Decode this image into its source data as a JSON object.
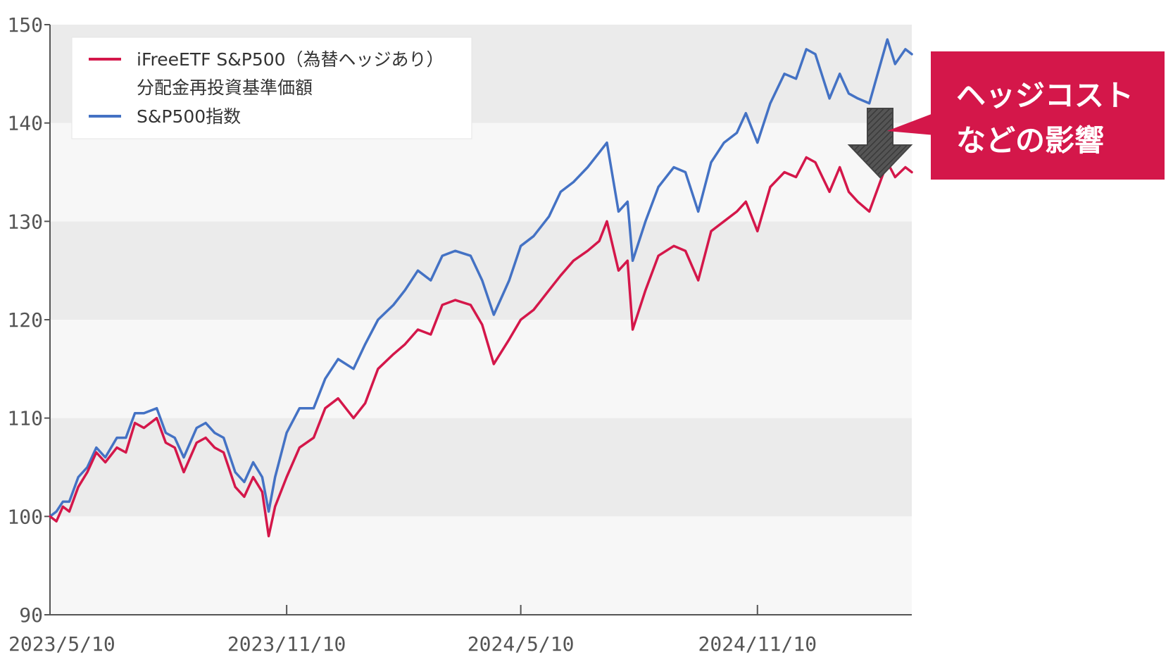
{
  "chart_data": {
    "type": "line",
    "title": "",
    "xlabel": "",
    "ylabel": "",
    "ylim": [
      90,
      150
    ],
    "yticks": [
      90,
      100,
      110,
      120,
      130,
      140,
      150
    ],
    "x_range": [
      "2023-05-10",
      "2025-03-10"
    ],
    "xticks": [
      "2023/5/10",
      "2023/11/10",
      "2024/5/10",
      "2024/11/10"
    ],
    "xtick_dates": [
      "2023-05-10",
      "2023-11-10",
      "2024-05-10",
      "2024-11-10"
    ],
    "grid": "alternating horizontal bands",
    "legend_position": "top-left",
    "legend": [
      {
        "label": "iFreeETF S&P500（為替ヘッジあり）",
        "color": "#d4174a"
      },
      {
        "label": "分配金再投資基準価額",
        "color": ""
      },
      {
        "label": "S&P500指数",
        "color": "#4472c4"
      }
    ],
    "series": [
      {
        "name": "iFreeETF S&P500（為替ヘッジあり） 分配金再投資基準価額",
        "color": "#d4174a",
        "x": [
          "2023-05-10",
          "2023-05-15",
          "2023-05-20",
          "2023-05-25",
          "2023-06-01",
          "2023-06-08",
          "2023-06-15",
          "2023-06-22",
          "2023-07-01",
          "2023-07-08",
          "2023-07-15",
          "2023-07-22",
          "2023-08-01",
          "2023-08-08",
          "2023-08-15",
          "2023-08-22",
          "2023-09-01",
          "2023-09-08",
          "2023-09-15",
          "2023-09-22",
          "2023-10-01",
          "2023-10-08",
          "2023-10-15",
          "2023-10-22",
          "2023-10-27",
          "2023-11-01",
          "2023-11-10",
          "2023-11-20",
          "2023-12-01",
          "2023-12-10",
          "2023-12-20",
          "2024-01-01",
          "2024-01-10",
          "2024-01-20",
          "2024-02-01",
          "2024-02-10",
          "2024-02-20",
          "2024-03-01",
          "2024-03-10",
          "2024-03-20",
          "2024-04-01",
          "2024-04-10",
          "2024-04-19",
          "2024-05-01",
          "2024-05-10",
          "2024-05-20",
          "2024-06-01",
          "2024-06-10",
          "2024-06-20",
          "2024-07-01",
          "2024-07-10",
          "2024-07-16",
          "2024-07-25",
          "2024-08-01",
          "2024-08-05",
          "2024-08-15",
          "2024-08-25",
          "2024-09-06",
          "2024-09-15",
          "2024-09-25",
          "2024-10-05",
          "2024-10-15",
          "2024-10-25",
          "2024-11-01",
          "2024-11-10",
          "2024-11-20",
          "2024-12-01",
          "2024-12-10",
          "2024-12-18",
          "2024-12-25",
          "2025-01-05",
          "2025-01-13",
          "2025-01-20",
          "2025-01-27",
          "2025-02-05",
          "2025-02-19",
          "2025-02-25",
          "2025-03-05",
          "2025-03-10"
        ],
        "y": [
          100,
          99.5,
          101,
          100.5,
          103,
          104.5,
          106.5,
          105.5,
          107,
          106.5,
          109.5,
          109,
          110,
          107.5,
          107,
          104.5,
          107.5,
          108,
          107,
          106.5,
          103,
          102,
          104,
          102.5,
          98,
          101,
          104,
          107,
          108,
          111,
          112,
          110,
          111.5,
          115,
          116.5,
          117.5,
          119,
          118.5,
          121.5,
          122,
          121.5,
          119.5,
          115.5,
          118,
          120,
          121,
          123,
          124.5,
          126,
          127,
          128,
          130,
          125,
          126,
          119,
          123,
          126.5,
          127.5,
          127,
          124,
          129,
          130,
          131,
          132,
          129,
          133.5,
          135,
          134.5,
          136.5,
          136,
          133,
          135.5,
          133,
          132,
          131,
          136,
          134.5,
          135.5,
          135
        ]
      },
      {
        "name": "S&P500指数",
        "color": "#4472c4",
        "x": [
          "2023-05-10",
          "2023-05-15",
          "2023-05-20",
          "2023-05-25",
          "2023-06-01",
          "2023-06-08",
          "2023-06-15",
          "2023-06-22",
          "2023-07-01",
          "2023-07-08",
          "2023-07-15",
          "2023-07-22",
          "2023-08-01",
          "2023-08-08",
          "2023-08-15",
          "2023-08-22",
          "2023-09-01",
          "2023-09-08",
          "2023-09-15",
          "2023-09-22",
          "2023-10-01",
          "2023-10-08",
          "2023-10-15",
          "2023-10-22",
          "2023-10-27",
          "2023-11-01",
          "2023-11-10",
          "2023-11-20",
          "2023-12-01",
          "2023-12-10",
          "2023-12-20",
          "2024-01-01",
          "2024-01-10",
          "2024-01-20",
          "2024-02-01",
          "2024-02-10",
          "2024-02-20",
          "2024-03-01",
          "2024-03-10",
          "2024-03-20",
          "2024-04-01",
          "2024-04-10",
          "2024-04-19",
          "2024-05-01",
          "2024-05-10",
          "2024-05-20",
          "2024-06-01",
          "2024-06-10",
          "2024-06-20",
          "2024-07-01",
          "2024-07-10",
          "2024-07-16",
          "2024-07-25",
          "2024-08-01",
          "2024-08-05",
          "2024-08-15",
          "2024-08-25",
          "2024-09-06",
          "2024-09-15",
          "2024-09-25",
          "2024-10-05",
          "2024-10-15",
          "2024-10-25",
          "2024-11-01",
          "2024-11-10",
          "2024-11-20",
          "2024-12-01",
          "2024-12-10",
          "2024-12-18",
          "2024-12-25",
          "2025-01-05",
          "2025-01-13",
          "2025-01-20",
          "2025-01-27",
          "2025-02-05",
          "2025-02-19",
          "2025-02-25",
          "2025-03-05",
          "2025-03-10"
        ],
        "y": [
          100,
          100.5,
          101.5,
          101.5,
          104,
          105,
          107,
          106,
          108,
          108,
          110.5,
          110.5,
          111,
          108.5,
          108,
          106,
          109,
          109.5,
          108.5,
          108,
          104.5,
          103.5,
          105.5,
          104,
          100.5,
          104,
          108.5,
          111,
          111,
          114,
          116,
          115,
          117.5,
          120,
          121.5,
          123,
          125,
          124,
          126.5,
          127,
          126.5,
          124,
          120.5,
          124,
          127.5,
          128.5,
          130.5,
          133,
          134,
          135.5,
          137,
          138,
          131,
          132,
          126,
          130,
          133.5,
          135.5,
          135,
          131,
          136,
          138,
          139,
          141,
          138,
          142,
          145,
          144.5,
          147.5,
          147,
          142.5,
          145,
          143,
          142.5,
          142,
          148.5,
          146,
          147.5,
          147
        ]
      }
    ],
    "annotation": {
      "lines": [
        "ヘッジコスト",
        "などの影響"
      ],
      "background": "#d4174a",
      "arrow": "down arrow between the two series near the end"
    }
  }
}
